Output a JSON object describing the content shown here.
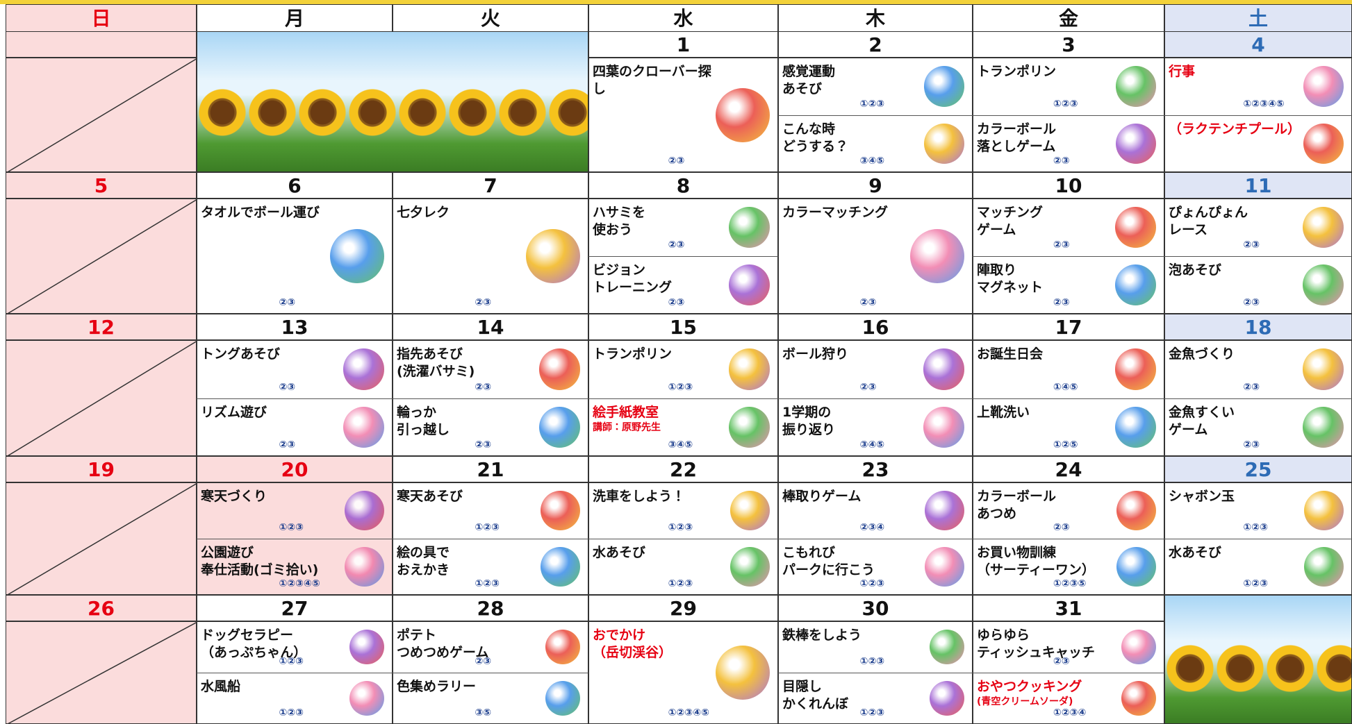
{
  "weekdays": [
    "日",
    "月",
    "火",
    "水",
    "木",
    "金",
    "土"
  ],
  "weeks": [
    {
      "days": [
        null,
        null,
        null,
        {
          "date": "1",
          "events": [
            {
              "text": "四葉のクローバー探し",
              "groups": "②③"
            }
          ]
        },
        {
          "date": "2",
          "events": [
            {
              "text": "感覚運動\nあそび",
              "groups": "①②③"
            },
            {
              "text": "こんな時\nどうする？",
              "groups": "③④⑤"
            }
          ]
        },
        {
          "date": "3",
          "events": [
            {
              "text": "トランポリン",
              "groups": "①②③"
            },
            {
              "text": "カラーボール\n落としゲーム",
              "groups": "②③"
            }
          ]
        },
        {
          "date": "4",
          "events": [
            {
              "text": "行事",
              "groups": "①②③④⑤",
              "color": "#e60012"
            },
            {
              "text": "（ラクテンチプール）",
              "color": "#e60012"
            }
          ]
        }
      ]
    },
    {
      "days": [
        {
          "date": "5"
        },
        {
          "date": "6",
          "events": [
            {
              "text": "タオルでボール運び",
              "groups": "②③"
            }
          ]
        },
        {
          "date": "7",
          "events": [
            {
              "text": "七夕レク",
              "groups": "②③"
            }
          ]
        },
        {
          "date": "8",
          "events": [
            {
              "text": "ハサミを\n使おう",
              "groups": "②③"
            },
            {
              "text": "ビジョン\nトレーニング",
              "groups": "②③"
            }
          ]
        },
        {
          "date": "9",
          "events": [
            {
              "text": "カラーマッチング",
              "groups": "②③"
            }
          ]
        },
        {
          "date": "10",
          "events": [
            {
              "text": "マッチング\nゲーム",
              "groups": "②③"
            },
            {
              "text": "陣取り\nマグネット",
              "groups": "②③"
            }
          ]
        },
        {
          "date": "11",
          "events": [
            {
              "text": "ぴょんぴょん\nレース",
              "groups": "②③"
            },
            {
              "text": "泡あそび",
              "groups": "②③"
            }
          ]
        }
      ]
    },
    {
      "days": [
        {
          "date": "12"
        },
        {
          "date": "13",
          "events": [
            {
              "text": "トングあそび",
              "groups": "②③"
            },
            {
              "text": "リズム遊び",
              "groups": "②③"
            }
          ]
        },
        {
          "date": "14",
          "events": [
            {
              "text": "指先あそび\n(洗濯バサミ)",
              "groups": "②③"
            },
            {
              "text": "輪っか\n引っ越し",
              "groups": "②③"
            }
          ]
        },
        {
          "date": "15",
          "events": [
            {
              "text": "トランポリン",
              "groups": "①②③"
            },
            {
              "text": "絵手紙教室",
              "sub": "講師：原野先生",
              "groups": "③④⑤",
              "color": "#e60012"
            }
          ]
        },
        {
          "date": "16",
          "events": [
            {
              "text": "ボール狩り",
              "groups": "②③"
            },
            {
              "text": "1学期の\n振り返り",
              "groups": "③④⑤"
            }
          ]
        },
        {
          "date": "17",
          "events": [
            {
              "text": "お誕生日会",
              "groups": "①④⑤"
            },
            {
              "text": "上靴洗い",
              "groups": "①②⑤"
            }
          ]
        },
        {
          "date": "18",
          "events": [
            {
              "text": "金魚づくり",
              "groups": "②③"
            },
            {
              "text": "金魚すくい\nゲーム",
              "groups": "②③"
            }
          ]
        }
      ]
    },
    {
      "days": [
        {
          "date": "19"
        },
        {
          "date": "20",
          "holiday": true,
          "events": [
            {
              "text": "寒天づくり",
              "groups": "①②③"
            },
            {
              "text": "公園遊び\n奉仕活動(ゴミ拾い)",
              "groups": "①②③④⑤"
            }
          ]
        },
        {
          "date": "21",
          "events": [
            {
              "text": "寒天あそび",
              "groups": "①②③"
            },
            {
              "text": "絵の具で\nおえかき",
              "groups": "①②③"
            }
          ]
        },
        {
          "date": "22",
          "events": [
            {
              "text": "洗車をしよう！",
              "groups": "①②③"
            },
            {
              "text": "水あそび",
              "groups": "①②③"
            }
          ]
        },
        {
          "date": "23",
          "events": [
            {
              "text": "棒取りゲーム",
              "groups": "②③④"
            },
            {
              "text": "こもれび\nパークに行こう",
              "groups": "①②③"
            }
          ]
        },
        {
          "date": "24",
          "events": [
            {
              "text": "カラーボール\nあつめ",
              "groups": "②③"
            },
            {
              "text": "お買い物訓練\n（サーティーワン）",
              "groups": "①②③⑤"
            }
          ]
        },
        {
          "date": "25",
          "events": [
            {
              "text": "シャボン玉",
              "groups": "①②③"
            },
            {
              "text": "水あそび",
              "groups": "①②③"
            }
          ]
        }
      ]
    },
    {
      "days": [
        {
          "date": "26"
        },
        {
          "date": "27",
          "events": [
            {
              "text": "ドッグセラピー\n（あっぷちゃん）",
              "groups": "①②③"
            },
            {
              "text": "水風船",
              "groups": "①②③"
            }
          ]
        },
        {
          "date": "28",
          "events": [
            {
              "text": "ポテト\nつめつめゲーム",
              "groups": "②③"
            },
            {
              "text": "色集めラリー",
              "groups": "③⑤"
            }
          ]
        },
        {
          "date": "29",
          "events": [
            {
              "text": "おでかけ\n（岳切渓谷）",
              "groups": "①②③④⑤",
              "color": "#e60012"
            }
          ]
        },
        {
          "date": "30",
          "events": [
            {
              "text": "鉄棒をしよう",
              "groups": "①②③"
            },
            {
              "text": "目隠し\nかくれんぼ",
              "groups": "①②③"
            }
          ]
        },
        {
          "date": "31",
          "events": [
            {
              "text": "ゆらゆら\nティッシュキャッチ",
              "groups": "②③"
            },
            {
              "text": "おやつクッキング",
              "sub": "(青空クリームソーダ)",
              "groups": "①②③④",
              "color": "#e60012"
            }
          ]
        },
        null
      ]
    }
  ]
}
